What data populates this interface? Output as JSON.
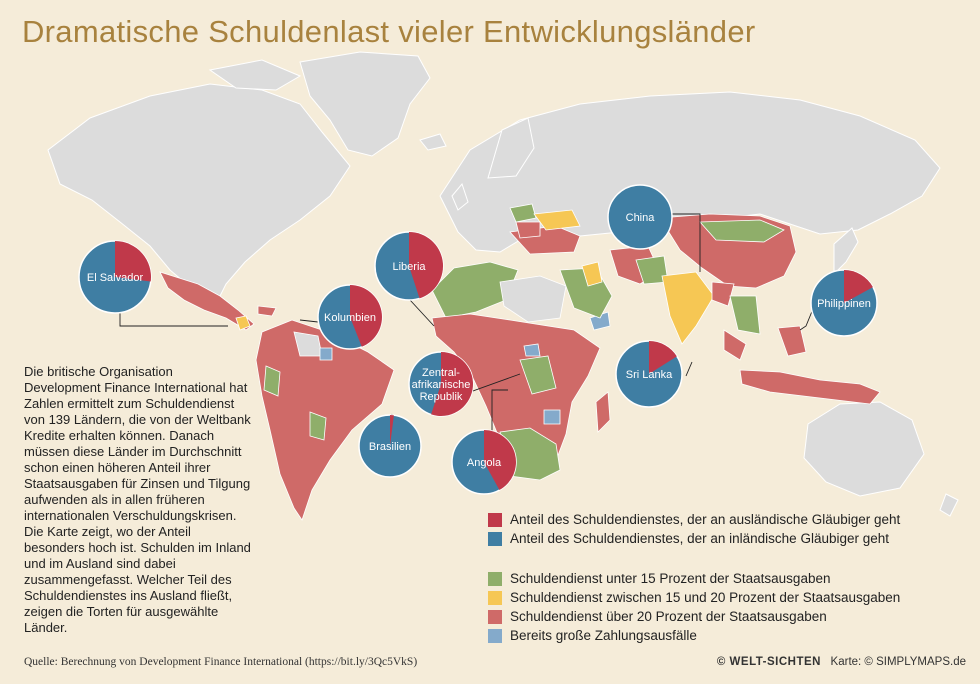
{
  "title": "Dramatische Schuldenlast vieler Entwicklungsländer",
  "body_text": "Die britische Organisation Development Finance International hat Zahlen ermittelt zum Schuldendienst von 139 Ländern, die von der Weltbank Kredite erhalten können. Danach müssen diese Länder im Durchschnitt schon einen höheren Anteil ihrer Staatsausgaben für Zinsen und Tilgung aufwenden als in allen früheren internationalen Verschuldungskrisen. Die Karte zeigt, wo der Anteil besonders hoch ist. Schulden im Inland und im Ausland sind dabei zusammengefasst. Welcher Teil des Schuldendienstes ins Ausland fließt, zeigen die Torten für ausgewählte Länder.",
  "colors": {
    "foreign": "#c0394a",
    "domestic": "#3f7ea3",
    "green": "#8fae6a",
    "yellow": "#f6c754",
    "red": "#cf6a68",
    "blue": "#84aacb",
    "land": "#dcdcdc",
    "background": "#f5ecd9",
    "title": "#a8823e"
  },
  "legend_pie": [
    {
      "label": "Anteil des Schuldendienstes, der an ausländische Gläubiger geht",
      "color": "#c0394a"
    },
    {
      "label": "Anteil des Schuldendienstes, der an inländische Gläubiger geht",
      "color": "#3f7ea3"
    }
  ],
  "legend_categories": [
    {
      "label": "Schuldendienst unter 15 Prozent der Staatsausgaben",
      "color": "#8fae6a"
    },
    {
      "label": "Schuldendienst zwischen 15 und 20 Prozent der Staatsausgaben",
      "color": "#f6c754"
    },
    {
      "label": "Schuldendienst über 20 Prozent der Staatsausgaben",
      "color": "#cf6a68"
    },
    {
      "label": "Bereits große Zahlungsausfälle",
      "color": "#84aacb"
    }
  ],
  "pies": [
    {
      "country": "El Salvador",
      "foreign_share": 0.27
    },
    {
      "country": "Liberia",
      "foreign_share": 0.45
    },
    {
      "country": "Kolumbien",
      "foreign_share": 0.44
    },
    {
      "country": "Zentral-\nafrikanische\nRepublik",
      "foreign_share": 0.55
    },
    {
      "country": "Brasilien",
      "foreign_share": 0.02
    },
    {
      "country": "Angola",
      "foreign_share": 0.42
    },
    {
      "country": "China",
      "foreign_share": 0.0
    },
    {
      "country": "Philippinen",
      "foreign_share": 0.17
    },
    {
      "country": "Sri Lanka",
      "foreign_share": 0.16
    }
  ],
  "source": "Quelle: Berechnung von Development Finance International (https://bit.ly/3Qc5VkS)",
  "credit_logo": "© WELT-SICHTEN",
  "credit_map": "Karte: © SIMPLYMAPS.de"
}
